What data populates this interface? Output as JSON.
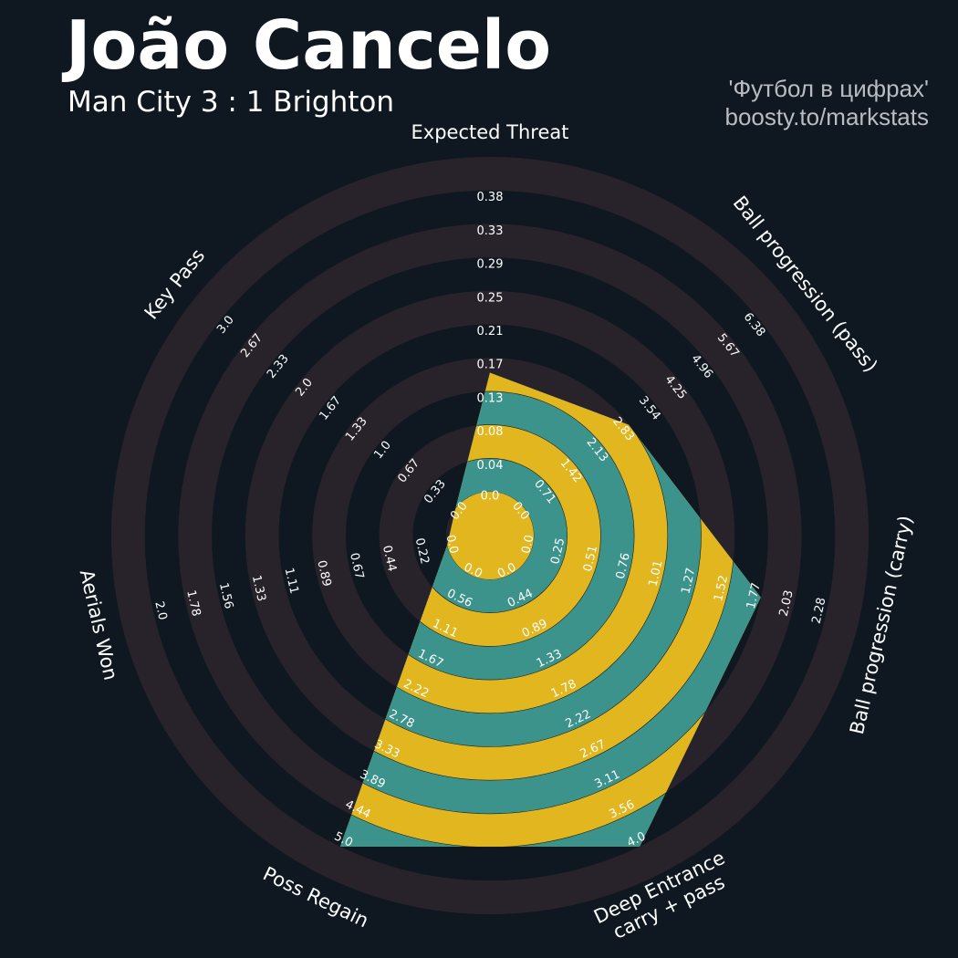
{
  "header": {
    "title": "João Cancelo",
    "subtitle": "Man City 3 : 1 Brighton",
    "credit_line1": "'Футбол в цифрах'",
    "credit_line2": "boosty.to/markstats"
  },
  "chart_data": {
    "type": "radar",
    "colors": {
      "background": "#0f1820",
      "ring_dark": "#0f1820",
      "ring_light": "#28232a",
      "fill_yellow": "#e2b61e",
      "fill_teal": "#3b938c",
      "label": "#ffffff"
    },
    "params": [
      {
        "name": "Expected Threat",
        "value": 0.15,
        "ticks": [
          "0.0",
          "0.04",
          "0.08",
          "0.13",
          "0.17",
          "0.21",
          "0.25",
          "0.29",
          "0.33",
          "0.38"
        ],
        "range": [
          0.0,
          0.38
        ]
      },
      {
        "name": "Ball progression (pass)",
        "value": 2.83,
        "ticks": [
          "0.0",
          "0.71",
          "1.42",
          "2.13",
          "2.83",
          "3.54",
          "4.25",
          "4.96",
          "5.67",
          "6.38"
        ],
        "range": [
          0.0,
          6.38
        ]
      },
      {
        "name": "Ball progression (carry)",
        "value": 1.77,
        "ticks": [
          "0.0",
          "0.25",
          "0.51",
          "0.76",
          "1.01",
          "1.27",
          "1.52",
          "1.77",
          "2.03",
          "2.28"
        ],
        "range": [
          0.0,
          2.28
        ]
      },
      {
        "name": "Deep Entrance\ncarry + pass",
        "value": 4.0,
        "ticks": [
          "0.0",
          "0.44",
          "0.89",
          "1.33",
          "1.78",
          "2.22",
          "2.67",
          "3.11",
          "3.56",
          "4.0"
        ],
        "range": [
          0.0,
          4.0
        ]
      },
      {
        "name": "Poss Regain",
        "value": 5.0,
        "ticks": [
          "0.0",
          "0.56",
          "1.11",
          "1.67",
          "2.22",
          "2.78",
          "3.33",
          "3.89",
          "4.44",
          "5.0"
        ],
        "range": [
          0.0,
          5.0
        ]
      },
      {
        "name": "Aerials Won",
        "value": 0.0,
        "ticks": [
          "0.0",
          "0.22",
          "0.44",
          "0.67",
          "0.89",
          "1.11",
          "1.33",
          "1.56",
          "1.78",
          "2.0"
        ],
        "range": [
          0.0,
          2.0
        ]
      },
      {
        "name": "Key Pass",
        "value": 0.0,
        "ticks": [
          "0.0",
          "0.33",
          "0.67",
          "1.0",
          "1.33",
          "1.67",
          "2.0",
          "2.33",
          "2.67",
          "3.0"
        ],
        "range": [
          0.0,
          3.0
        ]
      }
    ]
  }
}
